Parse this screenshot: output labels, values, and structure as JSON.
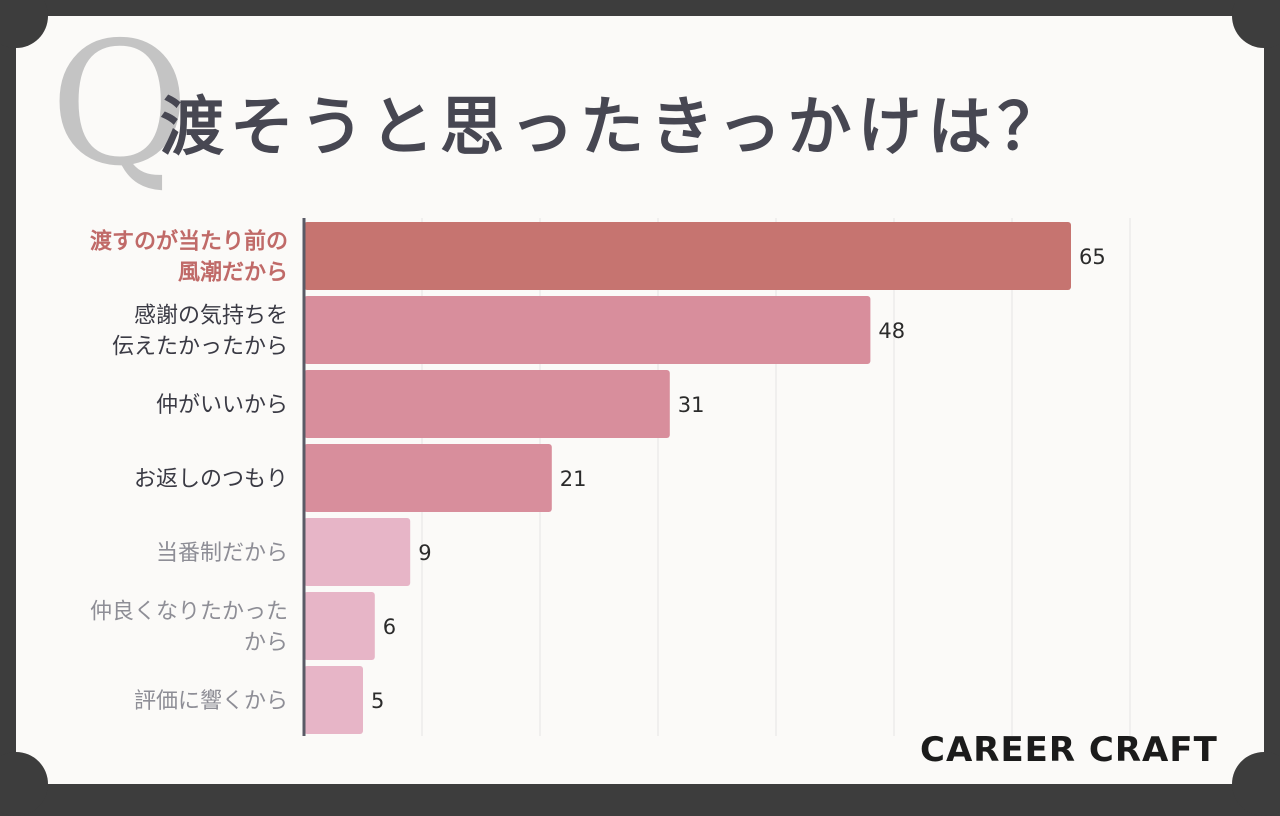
{
  "title": "渡そうと思ったきっかけは？",
  "q_mark": "Q",
  "logo": "CAREER CRAFT",
  "colors": {
    "frame": "#3d3d3d",
    "background": "#fbfaf8",
    "grid": "#e4e4e4",
    "axis": "#5a5a66",
    "value_text": "#2b2b2b"
  },
  "chart_data": {
    "type": "bar",
    "orientation": "horizontal",
    "categories": [
      [
        "渡すのが当たり前の",
        "風潮だから"
      ],
      [
        "感謝の気持ちを",
        "伝えたかったから"
      ],
      [
        "仲がいいから"
      ],
      [
        "お返しのつもり"
      ],
      [
        "当番制だから"
      ],
      [
        "仲良くなりたかった",
        "から"
      ],
      [
        "評価に響くから"
      ]
    ],
    "values": [
      65,
      48,
      31,
      21,
      9,
      6,
      5
    ],
    "bar_colors": [
      "#c67470",
      "#d88e9c",
      "#d88e9c",
      "#d88e9c",
      "#e7b5c7",
      "#e7b5c7",
      "#e7b5c7"
    ],
    "label_colors": [
      "#c06a68",
      "#3a3a44",
      "#3a3a44",
      "#3a3a44",
      "#8e8e96",
      "#8e8e96",
      "#8e8e96"
    ],
    "label_bold": [
      true,
      false,
      false,
      false,
      false,
      false,
      false
    ],
    "xlim": [
      0,
      70
    ],
    "grid": true
  }
}
